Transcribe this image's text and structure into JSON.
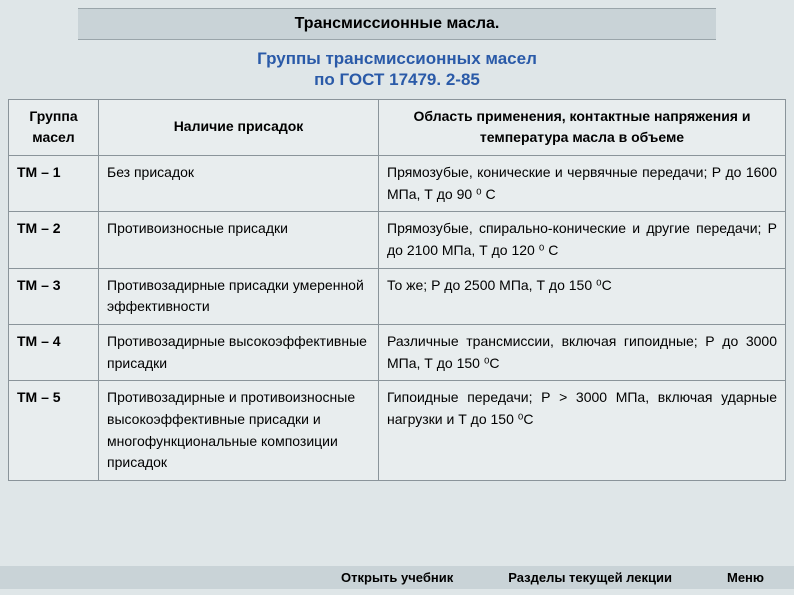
{
  "colors": {
    "page_bg": "#dfe6e8",
    "panel_bg": "#c9d3d7",
    "cell_bg": "#e8edee",
    "border": "#8a949a",
    "subtitle": "#2a5aa8",
    "text": "#000000"
  },
  "title": "Трансмиссионные масла.",
  "subtitle_line1": "Группы трансмиссионных масел",
  "subtitle_line2": "по ГОСТ 17479. 2-85",
  "columns": {
    "group": "Группа масел",
    "additives": "Наличие присадок",
    "application": "Область применения, контактные напряжения и температура масла в объеме"
  },
  "rows": [
    {
      "group": "ТМ – 1",
      "additives": "Без присадок",
      "application": "Прямозубые, конические и червячные передачи; Р до 1600 МПа, Т до 90 ⁰ С"
    },
    {
      "group": "ТМ – 2",
      "additives": "Противоизносные присадки",
      "application": "Прямозубые, спирально-конические и другие передачи; Р до 2100 МПа, Т до 120 ⁰ С"
    },
    {
      "group": "ТМ – 3",
      "additives": "Противозадирные присадки умеренной эффективности",
      "application": "То же; Р до 2500 МПа, Т до 150 ⁰С"
    },
    {
      "group": "ТМ – 4",
      "additives": "Противозадирные высокоэффективные присадки",
      "application": "Различные трансмиссии, включая гипоидные; Р до 3000 МПа, Т до 150 ⁰С"
    },
    {
      "group": "ТМ – 5",
      "additives": "Противозадирные и противоизносные высокоэффективные присадки и многофункциональные композиции присадок",
      "application": "Гипоидные передачи; Р > 3000 МПа, включая ударные нагрузки и Т до 150 ⁰С"
    }
  ],
  "footer": {
    "open_textbook": "Открыть учебник",
    "sections": "Разделы текущей лекции",
    "menu": "Меню"
  }
}
